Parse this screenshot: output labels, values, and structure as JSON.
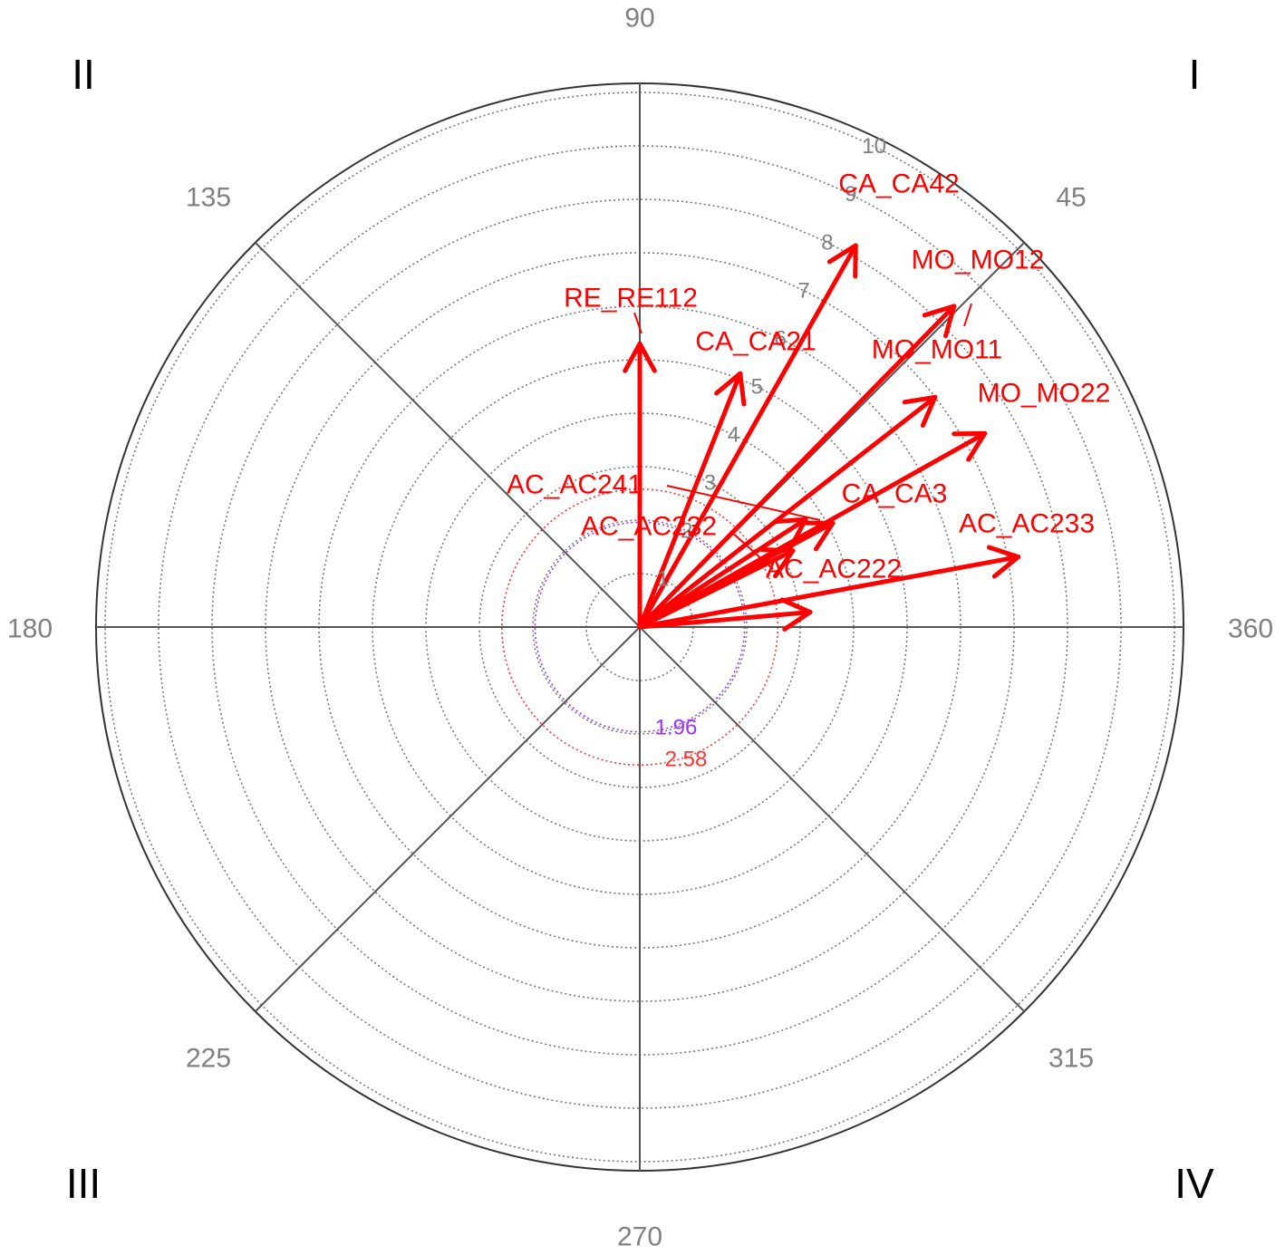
{
  "chart_data": {
    "type": "polar-vector",
    "title": "",
    "radial_ticks": [
      "1",
      "2",
      "3",
      "4",
      "5",
      "6",
      "7",
      "8",
      "9",
      "10"
    ],
    "radial_max": 10,
    "radial_outer_extra": 0.2,
    "grid": true,
    "angle_labels": [
      {
        "angle": 90,
        "text": "90"
      },
      {
        "angle": 45,
        "text": "45"
      },
      {
        "angle": 135,
        "text": "135"
      },
      {
        "angle": 180,
        "text": "180"
      },
      {
        "angle": 360,
        "text": "360"
      },
      {
        "angle": 225,
        "text": "225"
      },
      {
        "angle": 315,
        "text": "315"
      },
      {
        "angle": 270,
        "text": "270"
      }
    ],
    "quadrant_labels": [
      {
        "quadrant": "top-right",
        "text": "I"
      },
      {
        "quadrant": "top-left",
        "text": "II"
      },
      {
        "quadrant": "bottom-left",
        "text": "III"
      },
      {
        "quadrant": "bottom-right",
        "text": "IV"
      }
    ],
    "thresholds": [
      {
        "value": 1.96,
        "label": "1.96",
        "color": "#9933ff"
      },
      {
        "value": 2.58,
        "label": "2.58",
        "color": "#ff3333"
      }
    ],
    "vectors": [
      {
        "label": "RE_RE112",
        "angle": 90.0,
        "length": 5.3
      },
      {
        "label": "CA_CA21",
        "angle": 68.4,
        "length": 5.1
      },
      {
        "label": "CA_CA42",
        "angle": 60.5,
        "length": 8.2
      },
      {
        "label": "MO_MO12",
        "angle": 45.6,
        "length": 8.4
      },
      {
        "label": "MO_MO11",
        "angle": 37.9,
        "length": 7.0
      },
      {
        "label": "MO_MO22",
        "angle": 29.3,
        "length": 7.4
      },
      {
        "label": "CA_CA3",
        "angle": 28.3,
        "length": 4.1
      },
      {
        "label": "AC_AC241",
        "angle": 33.0,
        "length": 3.7
      },
      {
        "label": "AC_AC232",
        "angle": 26.5,
        "length": 3.2
      },
      {
        "label": "AC_AC233",
        "angle": 10.5,
        "length": 7.2
      },
      {
        "label": "AC_AC222",
        "angle": 5.0,
        "length": 3.2
      }
    ],
    "colors": {
      "vector": "#ff0000",
      "axis": "#555555",
      "grid_ring": "#777777",
      "outer_ring": "#333333",
      "angle_label": "#808080",
      "quadrant_label": "#000000"
    }
  }
}
